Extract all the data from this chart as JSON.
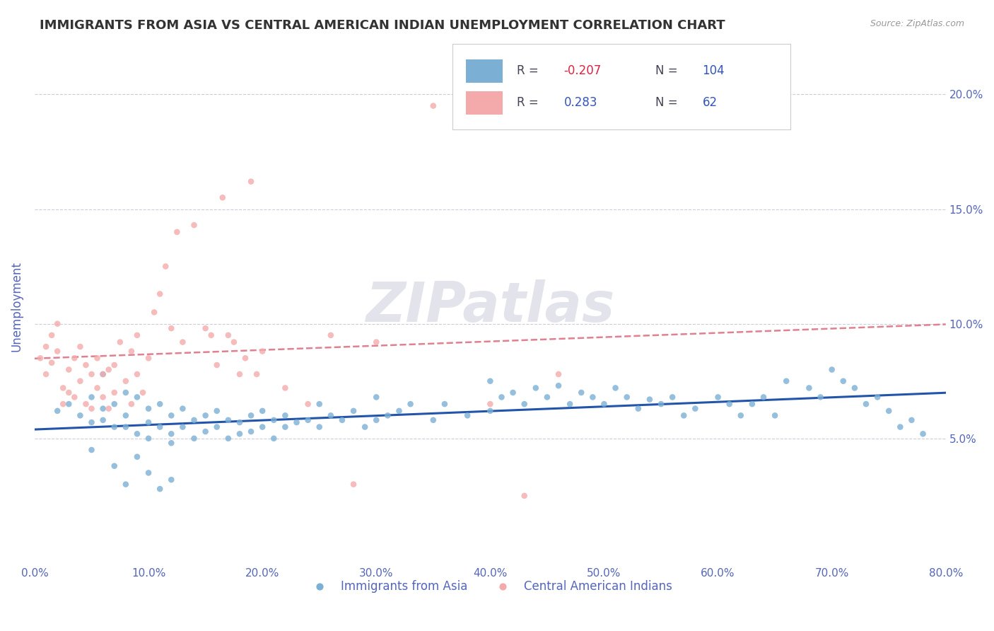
{
  "title": "IMMIGRANTS FROM ASIA VS CENTRAL AMERICAN INDIAN UNEMPLOYMENT CORRELATION CHART",
  "source_text": "Source: ZipAtlas.com",
  "ylabel": "Unemployment",
  "xlim": [
    0.0,
    0.8
  ],
  "ylim": [
    -0.005,
    0.22
  ],
  "xticks": [
    0.0,
    0.1,
    0.2,
    0.3,
    0.4,
    0.5,
    0.6,
    0.7,
    0.8
  ],
  "xticklabels": [
    "0.0%",
    "10.0%",
    "20.0%",
    "30.0%",
    "40.0%",
    "50.0%",
    "60.0%",
    "70.0%",
    "80.0%"
  ],
  "yticks": [
    0.05,
    0.1,
    0.15,
    0.2
  ],
  "yticklabels": [
    "5.0%",
    "10.0%",
    "15.0%",
    "20.0%"
  ],
  "blue_color": "#7BAFD4",
  "pink_color": "#F4AAAA",
  "trend_blue": "#2255AA",
  "trend_pink": "#E08090",
  "axis_label_color": "#5566BB",
  "grid_color": "#CCCCDD",
  "legend_R1": "-0.207",
  "legend_N1": "104",
  "legend_R2": "0.283",
  "legend_N2": "62",
  "legend_label1": "Immigrants from Asia",
  "legend_label2": "Central American Indians",
  "watermark": "ZIPatlas",
  "blue_x": [
    0.02,
    0.03,
    0.04,
    0.05,
    0.05,
    0.06,
    0.06,
    0.07,
    0.07,
    0.08,
    0.08,
    0.08,
    0.09,
    0.09,
    0.1,
    0.1,
    0.1,
    0.11,
    0.11,
    0.12,
    0.12,
    0.12,
    0.13,
    0.13,
    0.14,
    0.14,
    0.15,
    0.15,
    0.16,
    0.16,
    0.17,
    0.17,
    0.18,
    0.18,
    0.19,
    0.19,
    0.2,
    0.2,
    0.21,
    0.21,
    0.22,
    0.22,
    0.23,
    0.24,
    0.25,
    0.25,
    0.26,
    0.27,
    0.28,
    0.29,
    0.3,
    0.3,
    0.31,
    0.32,
    0.33,
    0.35,
    0.36,
    0.38,
    0.4,
    0.4,
    0.41,
    0.42,
    0.43,
    0.44,
    0.45,
    0.46,
    0.47,
    0.48,
    0.49,
    0.5,
    0.51,
    0.52,
    0.53,
    0.54,
    0.55,
    0.56,
    0.57,
    0.58,
    0.6,
    0.61,
    0.62,
    0.63,
    0.64,
    0.65,
    0.66,
    0.68,
    0.69,
    0.7,
    0.71,
    0.72,
    0.73,
    0.74,
    0.75,
    0.76,
    0.77,
    0.78,
    0.05,
    0.06,
    0.07,
    0.08,
    0.09,
    0.1,
    0.11,
    0.12
  ],
  "blue_y": [
    0.062,
    0.065,
    0.06,
    0.068,
    0.057,
    0.063,
    0.058,
    0.065,
    0.055,
    0.07,
    0.06,
    0.055,
    0.068,
    0.052,
    0.063,
    0.057,
    0.05,
    0.065,
    0.055,
    0.06,
    0.052,
    0.048,
    0.063,
    0.055,
    0.058,
    0.05,
    0.06,
    0.053,
    0.062,
    0.055,
    0.058,
    0.05,
    0.057,
    0.052,
    0.06,
    0.053,
    0.062,
    0.055,
    0.058,
    0.05,
    0.06,
    0.055,
    0.057,
    0.058,
    0.065,
    0.055,
    0.06,
    0.058,
    0.062,
    0.055,
    0.068,
    0.058,
    0.06,
    0.062,
    0.065,
    0.058,
    0.065,
    0.06,
    0.075,
    0.062,
    0.068,
    0.07,
    0.065,
    0.072,
    0.068,
    0.073,
    0.065,
    0.07,
    0.068,
    0.065,
    0.072,
    0.068,
    0.063,
    0.067,
    0.065,
    0.068,
    0.06,
    0.063,
    0.068,
    0.065,
    0.06,
    0.065,
    0.068,
    0.06,
    0.075,
    0.072,
    0.068,
    0.08,
    0.075,
    0.072,
    0.065,
    0.068,
    0.062,
    0.055,
    0.058,
    0.052,
    0.045,
    0.078,
    0.038,
    0.03,
    0.042,
    0.035,
    0.028,
    0.032
  ],
  "pink_x": [
    0.005,
    0.01,
    0.01,
    0.015,
    0.015,
    0.02,
    0.02,
    0.025,
    0.025,
    0.03,
    0.03,
    0.035,
    0.035,
    0.04,
    0.04,
    0.045,
    0.045,
    0.05,
    0.05,
    0.055,
    0.055,
    0.06,
    0.06,
    0.065,
    0.065,
    0.07,
    0.07,
    0.075,
    0.08,
    0.085,
    0.085,
    0.09,
    0.09,
    0.095,
    0.1,
    0.105,
    0.11,
    0.115,
    0.12,
    0.125,
    0.13,
    0.14,
    0.15,
    0.155,
    0.16,
    0.165,
    0.17,
    0.175,
    0.18,
    0.185,
    0.19,
    0.195,
    0.2,
    0.22,
    0.24,
    0.26,
    0.28,
    0.3,
    0.35,
    0.4,
    0.43,
    0.46
  ],
  "pink_y": [
    0.085,
    0.09,
    0.078,
    0.095,
    0.083,
    0.1,
    0.088,
    0.072,
    0.065,
    0.08,
    0.07,
    0.085,
    0.068,
    0.09,
    0.075,
    0.082,
    0.065,
    0.078,
    0.063,
    0.085,
    0.072,
    0.068,
    0.078,
    0.08,
    0.063,
    0.082,
    0.07,
    0.092,
    0.075,
    0.088,
    0.065,
    0.078,
    0.095,
    0.07,
    0.085,
    0.105,
    0.113,
    0.125,
    0.098,
    0.14,
    0.092,
    0.143,
    0.098,
    0.095,
    0.082,
    0.155,
    0.095,
    0.092,
    0.078,
    0.085,
    0.162,
    0.078,
    0.088,
    0.072,
    0.065,
    0.095,
    0.03,
    0.092,
    0.195,
    0.065,
    0.025,
    0.078
  ]
}
